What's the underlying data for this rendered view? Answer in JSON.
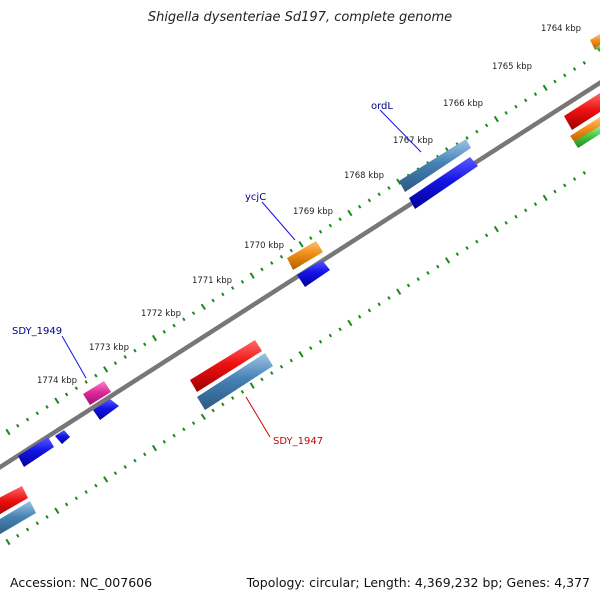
{
  "title": "Shigella dysenteriae Sd197, complete genome",
  "accession": "Accession: NC_007606",
  "summary": "Topology: circular; Length: 4,369,232 bp; Genes: 4,377",
  "colors": {
    "backbone": "#777777",
    "tick": "#1a8a1a",
    "forward_cds": "#e8141e",
    "reverse_cds": "#4682b4",
    "orf": "#1414e6",
    "trna": "#f08c14",
    "rrna": "#e02c9c",
    "misc": "#46c846",
    "label_blue": "#00008b",
    "label_red": "#cc0000"
  },
  "ticks": [
    {
      "label": "1764 kbp"
    },
    {
      "label": "1765 kbp"
    },
    {
      "label": "1766 kbp"
    },
    {
      "label": "1767 kbp"
    },
    {
      "label": "1768 kbp"
    },
    {
      "label": "1769 kbp"
    },
    {
      "label": "1770 kbp"
    },
    {
      "label": "1771 kbp"
    },
    {
      "label": "1772 kbp"
    },
    {
      "label": "1773 kbp"
    },
    {
      "label": "1774 kbp"
    }
  ],
  "labels": {
    "ordL": "ordL",
    "ycjC": "ycjC",
    "SDY_1949": "SDY_1949",
    "SDY_1947": "SDY_1947"
  }
}
